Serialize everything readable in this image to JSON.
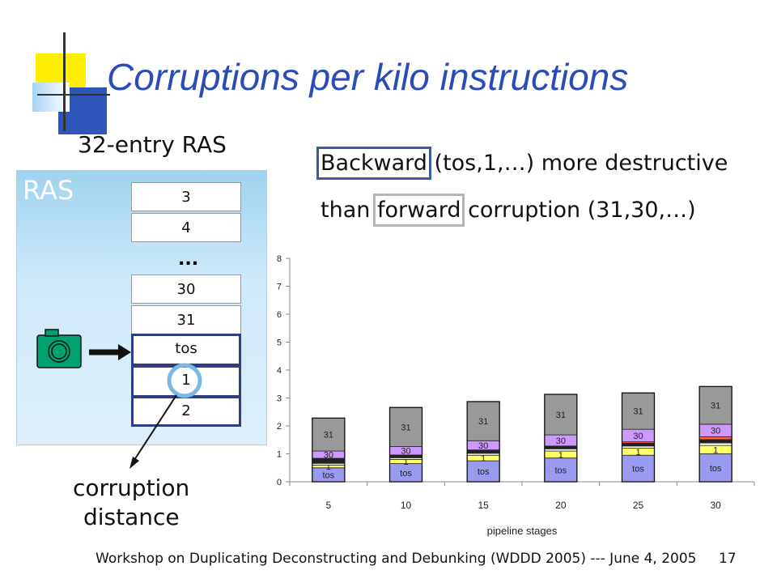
{
  "slide": {
    "title": "Corruptions per kilo instructions",
    "subtitle": "32-entry RAS",
    "note": {
      "backward": "Backward",
      "line1_rest": " (tos,1,…) more destructive",
      "line2_pre": "than ",
      "forward": "forward",
      "line2_rest": " corruption (31,30,…)"
    },
    "ras": {
      "label": "RAS",
      "top_entries": [
        "3",
        "4"
      ],
      "ellipsis": "...",
      "mid_entries": [
        "30",
        "31"
      ],
      "tos": "tos",
      "after_tos": [
        "1",
        "2"
      ]
    },
    "annotation": {
      "line1": "corruption",
      "line2": "distance"
    },
    "footer": "Workshop on Duplicating Deconstructing and Debunking (WDDD 2005) --- June 4, 2005",
    "page_number": "17",
    "colors": {
      "title": "#2a4cb8",
      "ras_highlight": "#2d3e82",
      "camera": "#00a070",
      "ring": "#7ab8e8"
    }
  },
  "chart_data": {
    "type": "bar",
    "stacked": true,
    "categories": [
      "5",
      "10",
      "15",
      "20",
      "25",
      "30"
    ],
    "xlabel": "pipeline stages",
    "ylabel": "",
    "ylim": [
      0,
      8
    ],
    "yticks": [
      "0",
      "1",
      "2",
      "3",
      "4",
      "5",
      "6",
      "7",
      "8"
    ],
    "grid": false,
    "series": [
      {
        "name": "tos",
        "color": "#9a9af0",
        "values": [
          0.5,
          0.65,
          0.75,
          0.85,
          0.95,
          1.0
        ]
      },
      {
        "name": "1",
        "color": "#ffff66",
        "values": [
          0.1,
          0.15,
          0.2,
          0.25,
          0.25,
          0.3
        ]
      },
      {
        "color": "#ffffff",
        "values": [
          0.06,
          0.06,
          0.07,
          0.08,
          0.08,
          0.09
        ]
      },
      {
        "color": "#222222",
        "values": [
          0.18,
          0.1,
          0.12,
          0.1,
          0.1,
          0.12
        ]
      },
      {
        "color": "#ff6633",
        "values": [
          0,
          0,
          0,
          0,
          0.05,
          0.1
        ]
      },
      {
        "name": "30",
        "color": "#cc99ff",
        "values": [
          0.26,
          0.3,
          0.33,
          0.4,
          0.45,
          0.45
        ]
      },
      {
        "name": "31",
        "color": "#999999",
        "values": [
          1.18,
          1.4,
          1.4,
          1.45,
          1.3,
          1.35
        ]
      }
    ],
    "data_labels": [
      {
        "series": "tos",
        "text": "tos"
      },
      {
        "series": "1",
        "text": "1"
      },
      {
        "series": "30",
        "text": "30"
      },
      {
        "series": "31",
        "text": "31"
      }
    ]
  }
}
